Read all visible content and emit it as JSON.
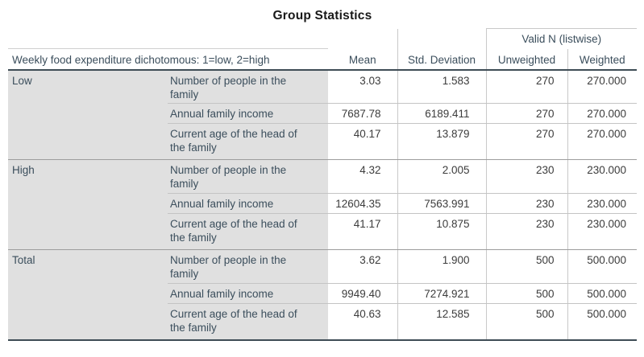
{
  "title": "Group Statistics",
  "table": {
    "stub_header": "Weekly food expenditure dichotomous: 1=low, 2=high",
    "col_headers": {
      "mean": "Mean",
      "std_deviation": "Std. Deviation",
      "valid_n_group": "Valid N (listwise)",
      "unweighted": "Unweighted",
      "weighted": "Weighted"
    },
    "groups": [
      {
        "label": "Low",
        "rows": [
          {
            "variable": "Number of people in the family",
            "mean": "3.03",
            "std_deviation": "1.583",
            "unweighted": "270",
            "weighted": "270.000"
          },
          {
            "variable": "Annual family income",
            "mean": "7687.78",
            "std_deviation": "6189.411",
            "unweighted": "270",
            "weighted": "270.000"
          },
          {
            "variable": "Current age of the head of the family",
            "mean": "40.17",
            "std_deviation": "13.879",
            "unweighted": "270",
            "weighted": "270.000"
          }
        ]
      },
      {
        "label": "High",
        "rows": [
          {
            "variable": "Number of people in the family",
            "mean": "4.32",
            "std_deviation": "2.005",
            "unweighted": "230",
            "weighted": "230.000"
          },
          {
            "variable": "Annual family income",
            "mean": "12604.35",
            "std_deviation": "7563.991",
            "unweighted": "230",
            "weighted": "230.000"
          },
          {
            "variable": "Current age of the head of the family",
            "mean": "41.17",
            "std_deviation": "10.875",
            "unweighted": "230",
            "weighted": "230.000"
          }
        ]
      },
      {
        "label": "Total",
        "rows": [
          {
            "variable": "Number of people in the family",
            "mean": "3.62",
            "std_deviation": "1.900",
            "unweighted": "500",
            "weighted": "500.000"
          },
          {
            "variable": "Annual family income",
            "mean": "9949.40",
            "std_deviation": "7274.921",
            "unweighted": "500",
            "weighted": "500.000"
          },
          {
            "variable": "Current age of the head of the family",
            "mean": "40.63",
            "std_deviation": "12.585",
            "unweighted": "500",
            "weighted": "500.000"
          }
        ]
      }
    ]
  },
  "colors": {
    "stub_background": "#e0e0e0",
    "header_text": "#3b4e5c",
    "data_text": "#3c3c3c",
    "thick_border": "#3e4c55",
    "section_border": "#9d9d9d",
    "row_border": "#c4c4c4",
    "thin_border": "#c9c9c9"
  }
}
